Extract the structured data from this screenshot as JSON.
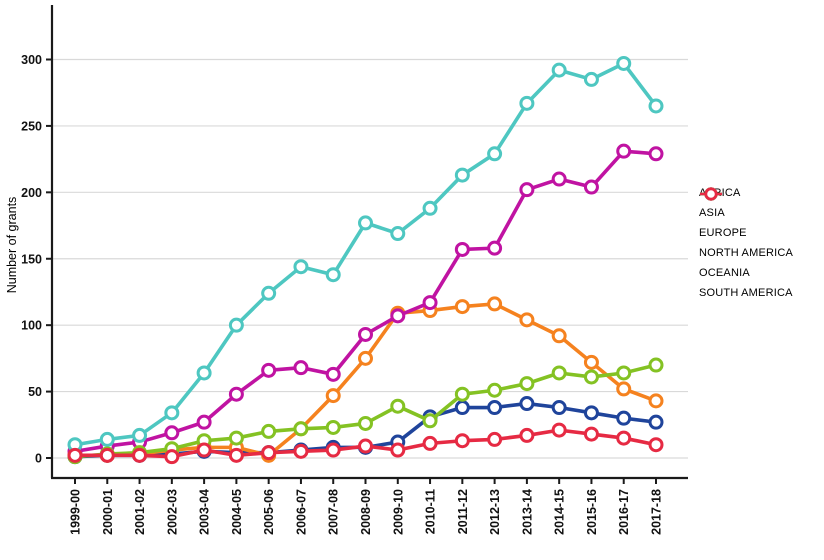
{
  "chart": {
    "ylabel": "Number of grants",
    "background": "#ffffff",
    "gridline_color": "#d9d9d9",
    "axis_color": "#1a1a1a"
  },
  "chart_data": {
    "type": "line",
    "title": "",
    "xlabel": "",
    "ylabel": "Number of grants",
    "ylim": [
      0,
      300
    ],
    "yticks": [
      0,
      50,
      100,
      150,
      200,
      250,
      300
    ],
    "grid": "horizontal",
    "legend_position": "right",
    "categories": [
      "1999-00",
      "2000-01",
      "2001-02",
      "2002-03",
      "2003-04",
      "2004-05",
      "2005-06",
      "2006-07",
      "2007-08",
      "2008-09",
      "2009-10",
      "2010-11",
      "2011-12",
      "2012-13",
      "2013-14",
      "2014-15",
      "2015-16",
      "2016-17",
      "2017-18"
    ],
    "series": [
      {
        "name": "AFRICA",
        "color": "#1f449b",
        "values": [
          1,
          2,
          2,
          3,
          5,
          4,
          4,
          6,
          8,
          8,
          12,
          31,
          38,
          38,
          41,
          38,
          34,
          30,
          27
        ]
      },
      {
        "name": "ASIA",
        "color": "#f5821f",
        "values": [
          2,
          2,
          3,
          6,
          8,
          8,
          2,
          22,
          47,
          75,
          109,
          111,
          114,
          116,
          104,
          92,
          72,
          52,
          43
        ]
      },
      {
        "name": "EUROPE",
        "color": "#c013a2",
        "values": [
          5,
          9,
          12,
          19,
          27,
          48,
          66,
          68,
          63,
          93,
          107,
          117,
          157,
          158,
          202,
          210,
          204,
          231,
          229
        ]
      },
      {
        "name": "NORTH AMERICA",
        "color": "#4ec7c1",
        "values": [
          10,
          14,
          17,
          34,
          64,
          100,
          124,
          144,
          138,
          177,
          169,
          188,
          213,
          229,
          267,
          292,
          285,
          297,
          265
        ]
      },
      {
        "name": "OCEANIA",
        "color": "#84c223",
        "values": [
          1,
          3,
          4,
          7,
          13,
          15,
          20,
          22,
          23,
          26,
          39,
          28,
          48,
          51,
          56,
          64,
          61,
          64,
          70
        ]
      },
      {
        "name": "SOUTH AMERICA",
        "color": "#e62a43",
        "values": [
          2,
          2,
          2,
          1,
          6,
          2,
          4,
          5,
          6,
          9,
          6,
          11,
          13,
          14,
          17,
          21,
          18,
          15,
          10
        ]
      }
    ]
  }
}
